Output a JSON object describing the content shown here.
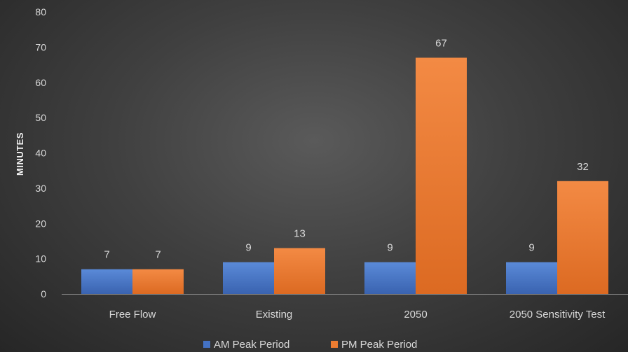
{
  "chart_data": {
    "type": "bar",
    "title": "",
    "xlabel": "",
    "ylabel": "MINUTES",
    "ylim": [
      0,
      80
    ],
    "yticks": [
      0,
      10,
      20,
      30,
      40,
      50,
      60,
      70,
      80
    ],
    "categories": [
      "Free Flow",
      "Existing",
      "2050",
      "2050 Sensitivity Test"
    ],
    "series": [
      {
        "name": "AM Peak Period",
        "color": "#4472c4",
        "values": [
          7,
          9,
          9,
          9
        ],
        "labels": [
          "7",
          "9",
          "9",
          "9"
        ]
      },
      {
        "name": "PM Peak Period",
        "color": "#ed7d31",
        "values": [
          7,
          13,
          67,
          32
        ],
        "labels": [
          "7",
          "13",
          "67",
          "32"
        ]
      }
    ],
    "grid": false,
    "legend_position": "bottom"
  }
}
